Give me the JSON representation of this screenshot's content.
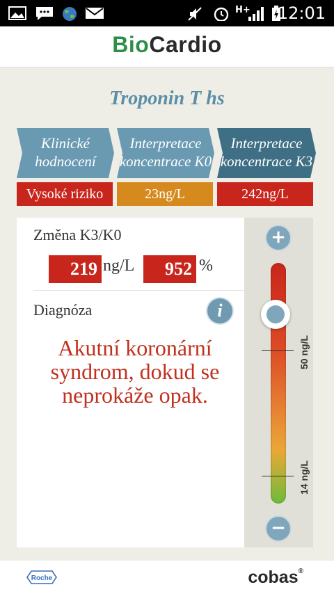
{
  "status_bar": {
    "time": "12:01",
    "network_label": "H+",
    "icons": [
      "image-icon",
      "chat-icon",
      "globe-icon",
      "mail-icon",
      "mute-icon",
      "alarm-icon",
      "signal-icon",
      "battery-icon"
    ]
  },
  "app": {
    "brand_part1": "Bio",
    "brand_part2": "Cardio"
  },
  "title": "Troponin T hs",
  "tabs": [
    {
      "label": "Klinické hodnocení"
    },
    {
      "label": "Interpretace koncentrace K0"
    },
    {
      "label": "Interpretace koncentrace K3"
    }
  ],
  "badges": [
    {
      "text": "Vysoké riziko",
      "color": "#c8261c"
    },
    {
      "text": "23ng/L",
      "color": "#d68a1e"
    },
    {
      "text": "242ng/L",
      "color": "#c8261c"
    }
  ],
  "change": {
    "label": "Změna K3/K0",
    "value1": "219",
    "unit1": "ng/L",
    "value2": "952",
    "unit2": "%"
  },
  "diagnosis": {
    "label": "Diagnóza",
    "info_symbol": "i",
    "text": "Akutní koronární syndrom, dokud se neprokáže opak."
  },
  "gauge": {
    "plus_symbol": "+",
    "minus_symbol": "−",
    "ticks": [
      {
        "label": "50 ng/L",
        "value": 50
      },
      {
        "label": "14 ng/L",
        "value": 14
      }
    ]
  },
  "footer": {
    "left_logo": "Roche",
    "right_logo": "cobas",
    "right_mark": "®"
  },
  "colors": {
    "accent_blue": "#5b8ea6",
    "alert_red": "#c8261c",
    "warn_orange": "#d68a1e",
    "brand_green": "#2f8f4a"
  }
}
